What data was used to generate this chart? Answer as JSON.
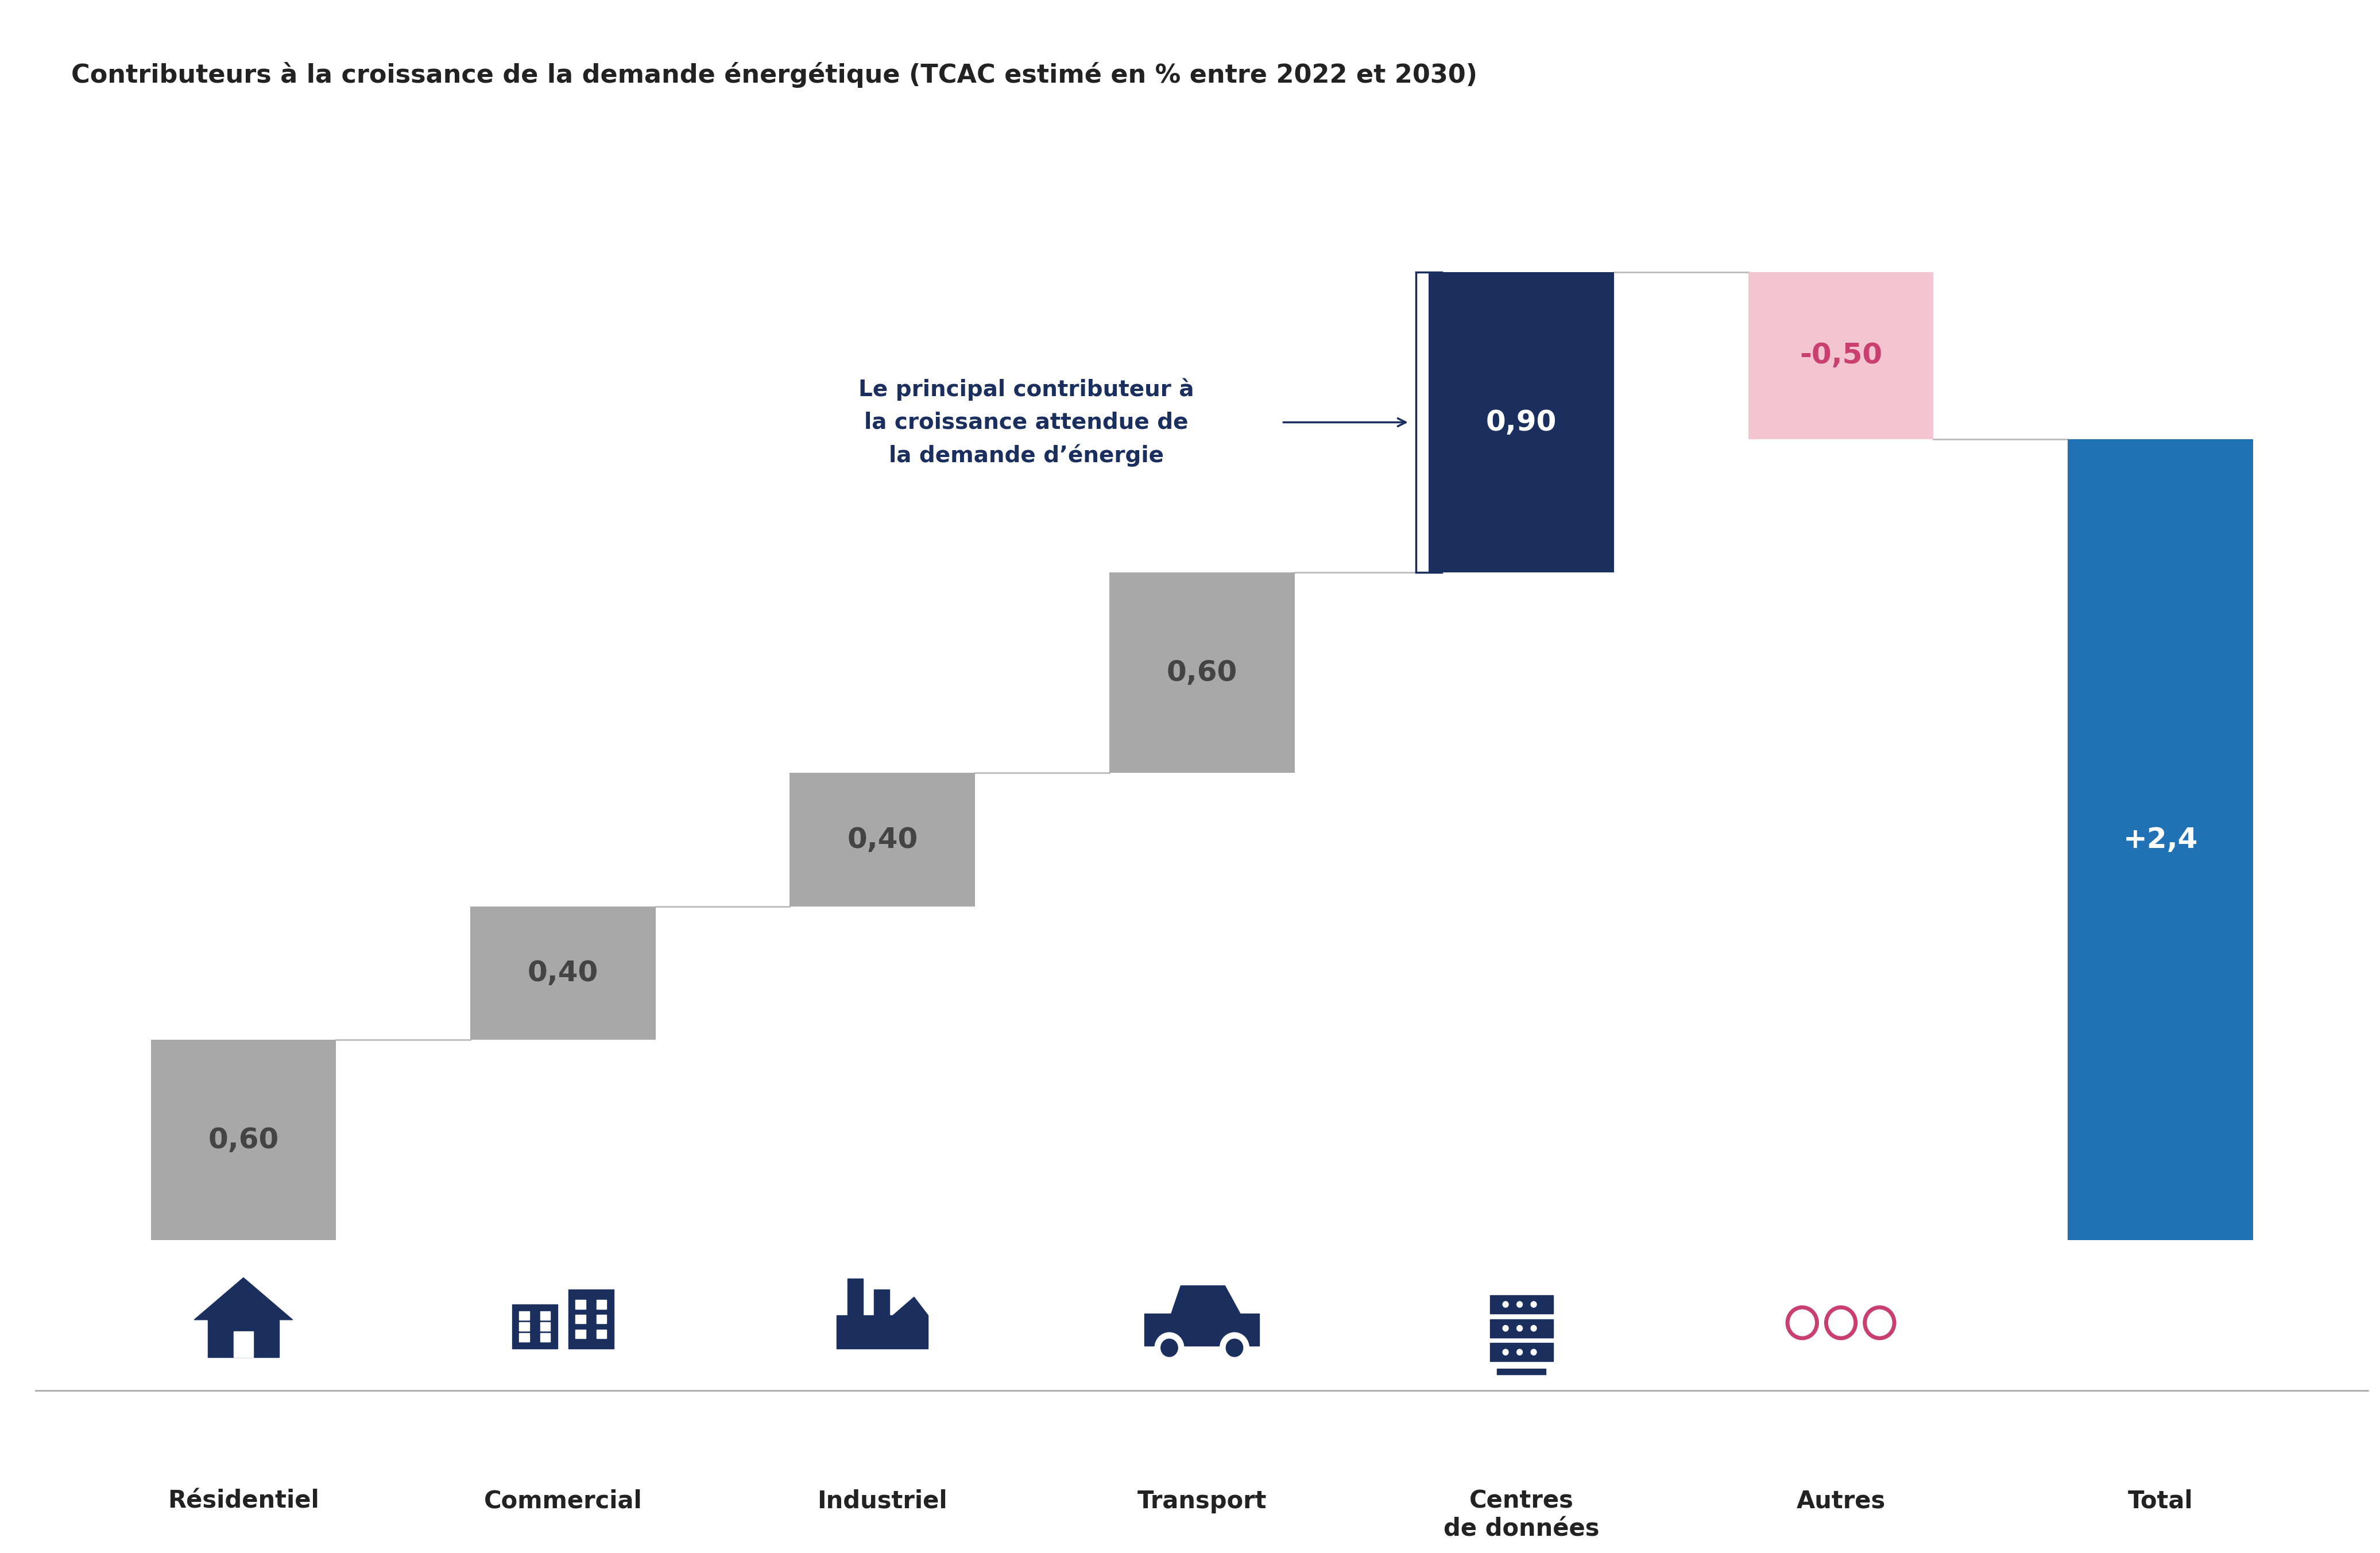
{
  "title": "Contributeurs à la croissance de la demande énergétique (TCAC estimé en % entre 2022 et 2030)",
  "categories": [
    "Résidentiel",
    "Commercial",
    "Industriel",
    "Transport",
    "Centres\nde données",
    "Autres",
    "Total"
  ],
  "values": [
    0.6,
    0.4,
    0.4,
    0.6,
    0.9,
    -0.5,
    2.4
  ],
  "bar_labels": [
    "0,60",
    "0,40",
    "0,40",
    "0,60",
    "0,90",
    "-0,50",
    "+2,4"
  ],
  "bar_colors": [
    "#a8a8a8",
    "#a8a8a8",
    "#a8a8a8",
    "#a8a8a8",
    "#1b2f5e",
    "#f2c5d0",
    "#2171b5"
  ],
  "connector_color": "#bbbbbb",
  "annotation_text": "Le principal contributeur à\nla croissance attendue de\nla demande d’énergie",
  "annotation_color": "#1b2f5e",
  "title_fontsize": 32,
  "bar_label_fontsize": 36,
  "xlabel_fontsize": 30,
  "icon_color_dark": "#1b2f5e",
  "icon_color_pink": "#c94070",
  "background_color": "#ffffff",
  "label_color_gray": "#444444",
  "label_color_light": "#ffffff",
  "label_color_pink": "#c94070"
}
